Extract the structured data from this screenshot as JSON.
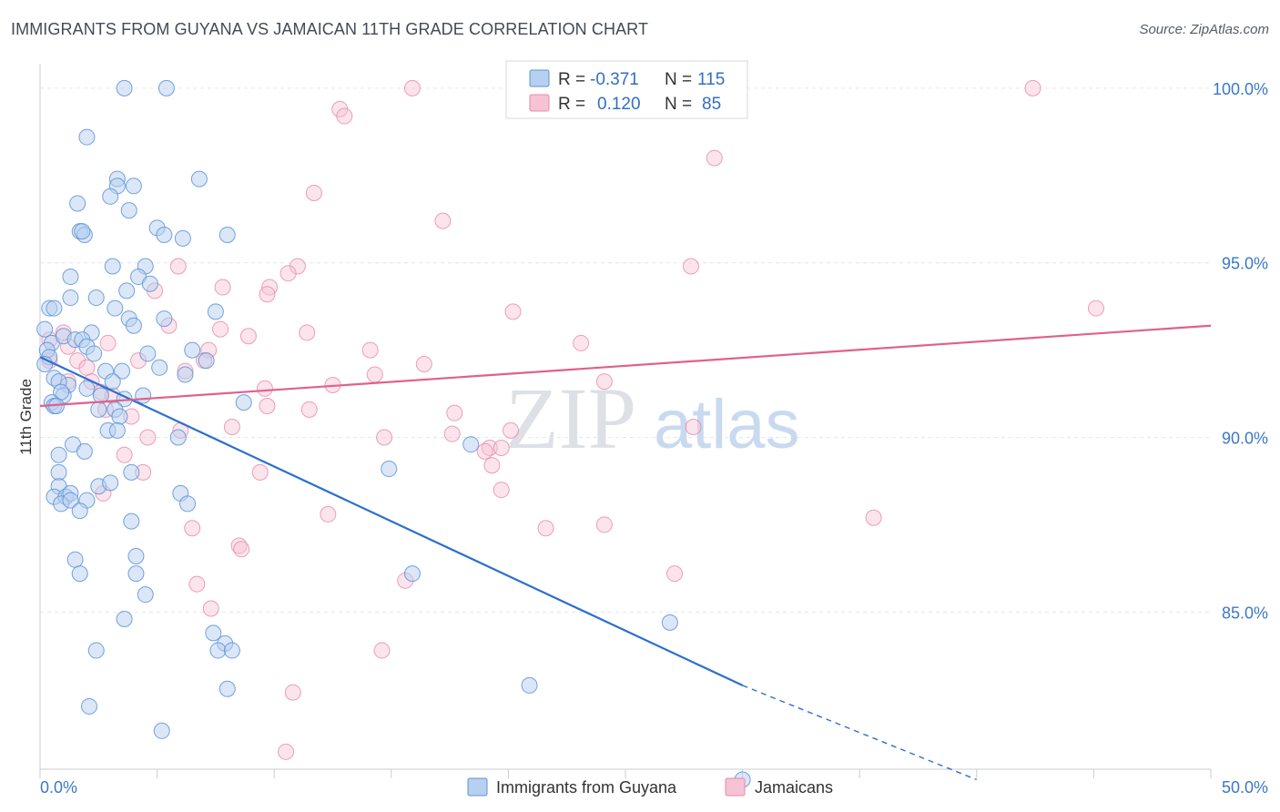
{
  "header": {
    "title": "IMMIGRANTS FROM GUYANA VS JAMAICAN 11TH GRADE CORRELATION CHART",
    "source": "Source: ZipAtlas.com"
  },
  "watermark": {
    "zip": "ZIP",
    "atlas": "atlas"
  },
  "colors": {
    "blue": "#5b93d9",
    "blue_fill": "#b7d0f0",
    "blue_line": "#2d6fd0",
    "pink": "#e68aa8",
    "pink_fill": "#f6c3d4",
    "pink_line": "#e0608c",
    "axis_text": "#3a78c6",
    "grid": "#e4e6ea"
  },
  "legend": {
    "rows": [
      {
        "r_label": "R =",
        "r_value": "-0.371",
        "n_label": "N =",
        "n_value": "115"
      },
      {
        "r_label": "R =",
        "r_value": "0.120",
        "n_label": "N =",
        "n_value": "85"
      }
    ]
  },
  "bottom_legend": {
    "items": [
      "Immigrants from Guyana",
      "Jamaicans"
    ]
  },
  "chart_data": {
    "type": "scatter",
    "xlabel": "",
    "ylabel": "11th Grade",
    "xlim": [
      0,
      50
    ],
    "ylim": [
      80.5,
      100.7
    ],
    "x_tick_labels": [
      "0.0%",
      "50.0%"
    ],
    "y_ticks": [
      85,
      90,
      95,
      100
    ],
    "y_tick_labels": [
      "85.0%",
      "90.0%",
      "95.0%",
      "100.0%"
    ],
    "grid": true,
    "legend_placement": "top-center",
    "series": [
      {
        "name": "Immigrants from Guyana",
        "r": -0.371,
        "n": 115,
        "trend": {
          "x": [
            0,
            30
          ],
          "y": [
            92.3,
            82.9
          ],
          "dashed_to": [
            40,
            80.2
          ]
        },
        "points": [
          [
            3.6,
            100.0
          ],
          [
            5.4,
            100.0
          ],
          [
            2.0,
            98.6
          ],
          [
            3.3,
            97.4
          ],
          [
            6.8,
            97.4
          ],
          [
            4.0,
            97.2
          ],
          [
            3.3,
            97.2
          ],
          [
            3.0,
            96.9
          ],
          [
            1.6,
            96.7
          ],
          [
            3.8,
            96.5
          ],
          [
            1.7,
            95.9
          ],
          [
            5.0,
            96.0
          ],
          [
            1.9,
            95.8
          ],
          [
            1.8,
            95.9
          ],
          [
            5.3,
            95.8
          ],
          [
            6.1,
            95.7
          ],
          [
            8.0,
            95.8
          ],
          [
            3.1,
            94.9
          ],
          [
            4.5,
            94.9
          ],
          [
            1.3,
            94.6
          ],
          [
            4.2,
            94.6
          ],
          [
            3.7,
            94.2
          ],
          [
            4.7,
            94.4
          ],
          [
            0.4,
            93.7
          ],
          [
            0.6,
            93.7
          ],
          [
            1.3,
            94.0
          ],
          [
            2.4,
            94.0
          ],
          [
            3.2,
            93.7
          ],
          [
            7.5,
            93.6
          ],
          [
            3.8,
            93.4
          ],
          [
            5.3,
            93.4
          ],
          [
            0.2,
            93.1
          ],
          [
            4.0,
            93.2
          ],
          [
            0.5,
            92.7
          ],
          [
            1.0,
            92.9
          ],
          [
            2.2,
            93.0
          ],
          [
            1.5,
            92.8
          ],
          [
            1.8,
            92.8
          ],
          [
            2.0,
            92.6
          ],
          [
            0.3,
            92.5
          ],
          [
            0.4,
            92.3
          ],
          [
            0.2,
            92.1
          ],
          [
            2.3,
            92.4
          ],
          [
            4.6,
            92.4
          ],
          [
            6.5,
            92.5
          ],
          [
            7.1,
            92.2
          ],
          [
            5.1,
            92.0
          ],
          [
            2.8,
            91.9
          ],
          [
            3.5,
            91.9
          ],
          [
            6.2,
            91.8
          ],
          [
            0.6,
            91.7
          ],
          [
            1.2,
            91.5
          ],
          [
            0.8,
            91.6
          ],
          [
            2.0,
            91.4
          ],
          [
            3.1,
            91.6
          ],
          [
            1.0,
            91.2
          ],
          [
            0.9,
            91.3
          ],
          [
            2.6,
            91.2
          ],
          [
            3.6,
            91.1
          ],
          [
            4.4,
            91.2
          ],
          [
            0.5,
            91.0
          ],
          [
            0.6,
            90.9
          ],
          [
            0.7,
            90.9
          ],
          [
            2.5,
            90.8
          ],
          [
            3.2,
            90.8
          ],
          [
            3.4,
            90.6
          ],
          [
            8.7,
            91.0
          ],
          [
            2.9,
            90.2
          ],
          [
            3.3,
            90.2
          ],
          [
            5.9,
            90.0
          ],
          [
            1.4,
            89.8
          ],
          [
            0.8,
            89.5
          ],
          [
            1.9,
            89.6
          ],
          [
            18.4,
            89.8
          ],
          [
            0.8,
            89.0
          ],
          [
            3.9,
            89.0
          ],
          [
            14.9,
            89.1
          ],
          [
            0.8,
            88.6
          ],
          [
            2.5,
            88.6
          ],
          [
            3.0,
            88.7
          ],
          [
            0.6,
            88.3
          ],
          [
            1.1,
            88.3
          ],
          [
            1.3,
            88.4
          ],
          [
            0.9,
            88.1
          ],
          [
            1.3,
            88.2
          ],
          [
            2.0,
            88.2
          ],
          [
            6.0,
            88.4
          ],
          [
            6.3,
            88.1
          ],
          [
            1.7,
            87.9
          ],
          [
            3.9,
            87.6
          ],
          [
            4.1,
            86.6
          ],
          [
            1.5,
            86.5
          ],
          [
            1.7,
            86.1
          ],
          [
            4.1,
            86.1
          ],
          [
            15.9,
            86.1
          ],
          [
            4.5,
            85.5
          ],
          [
            3.6,
            84.8
          ],
          [
            26.9,
            84.7
          ],
          [
            7.4,
            84.4
          ],
          [
            7.9,
            84.1
          ],
          [
            2.4,
            83.9
          ],
          [
            7.6,
            83.9
          ],
          [
            8.2,
            83.9
          ],
          [
            8.0,
            82.8
          ],
          [
            20.9,
            82.9
          ],
          [
            2.1,
            82.3
          ],
          [
            5.2,
            81.6
          ],
          [
            30.0,
            80.2
          ]
        ]
      },
      {
        "name": "Jamaicans",
        "r": 0.12,
        "n": 85,
        "trend": {
          "x": [
            0,
            50
          ],
          "y": [
            90.9,
            93.2
          ]
        },
        "points": [
          [
            15.9,
            100.0
          ],
          [
            26.5,
            100.0
          ],
          [
            42.4,
            100.0
          ],
          [
            12.8,
            99.4
          ],
          [
            13.0,
            99.2
          ],
          [
            28.8,
            98.0
          ],
          [
            11.7,
            97.0
          ],
          [
            17.2,
            96.2
          ],
          [
            5.9,
            94.9
          ],
          [
            11.0,
            94.9
          ],
          [
            27.8,
            94.9
          ],
          [
            10.6,
            94.7
          ],
          [
            7.8,
            94.3
          ],
          [
            9.8,
            94.3
          ],
          [
            4.9,
            94.2
          ],
          [
            9.7,
            94.1
          ],
          [
            20.2,
            93.6
          ],
          [
            45.1,
            93.7
          ],
          [
            5.5,
            93.2
          ],
          [
            7.7,
            93.1
          ],
          [
            11.4,
            93.0
          ],
          [
            8.9,
            92.9
          ],
          [
            1.0,
            93.0
          ],
          [
            0.4,
            92.8
          ],
          [
            1.2,
            92.6
          ],
          [
            2.9,
            92.7
          ],
          [
            7.2,
            92.5
          ],
          [
            14.1,
            92.5
          ],
          [
            23.1,
            92.7
          ],
          [
            0.4,
            92.2
          ],
          [
            1.6,
            92.2
          ],
          [
            7.0,
            92.2
          ],
          [
            4.2,
            92.2
          ],
          [
            2.0,
            92.0
          ],
          [
            14.3,
            91.8
          ],
          [
            16.4,
            92.1
          ],
          [
            6.2,
            91.9
          ],
          [
            1.2,
            91.6
          ],
          [
            2.2,
            91.6
          ],
          [
            9.6,
            91.4
          ],
          [
            12.5,
            91.5
          ],
          [
            24.1,
            91.6
          ],
          [
            2.6,
            91.3
          ],
          [
            3.1,
            91.2
          ],
          [
            2.8,
            90.8
          ],
          [
            9.7,
            90.9
          ],
          [
            11.5,
            90.8
          ],
          [
            3.9,
            90.6
          ],
          [
            17.7,
            90.7
          ],
          [
            8.2,
            90.3
          ],
          [
            6.0,
            90.2
          ],
          [
            4.6,
            90.0
          ],
          [
            14.7,
            90.0
          ],
          [
            17.6,
            90.1
          ],
          [
            20.1,
            90.2
          ],
          [
            27.9,
            90.3
          ],
          [
            19.2,
            89.7
          ],
          [
            19.7,
            89.7
          ],
          [
            19.0,
            89.6
          ],
          [
            3.6,
            89.5
          ],
          [
            19.3,
            89.2
          ],
          [
            4.4,
            89.0
          ],
          [
            9.4,
            89.0
          ],
          [
            2.7,
            88.4
          ],
          [
            19.7,
            88.5
          ],
          [
            12.3,
            87.8
          ],
          [
            21.6,
            87.4
          ],
          [
            24.1,
            87.5
          ],
          [
            35.6,
            87.7
          ],
          [
            6.5,
            87.4
          ],
          [
            8.5,
            86.9
          ],
          [
            8.6,
            86.8
          ],
          [
            27.1,
            86.1
          ],
          [
            6.7,
            85.8
          ],
          [
            15.6,
            85.9
          ],
          [
            7.3,
            85.1
          ],
          [
            14.6,
            83.9
          ],
          [
            10.8,
            82.7
          ],
          [
            10.5,
            81.0
          ]
        ]
      }
    ]
  }
}
